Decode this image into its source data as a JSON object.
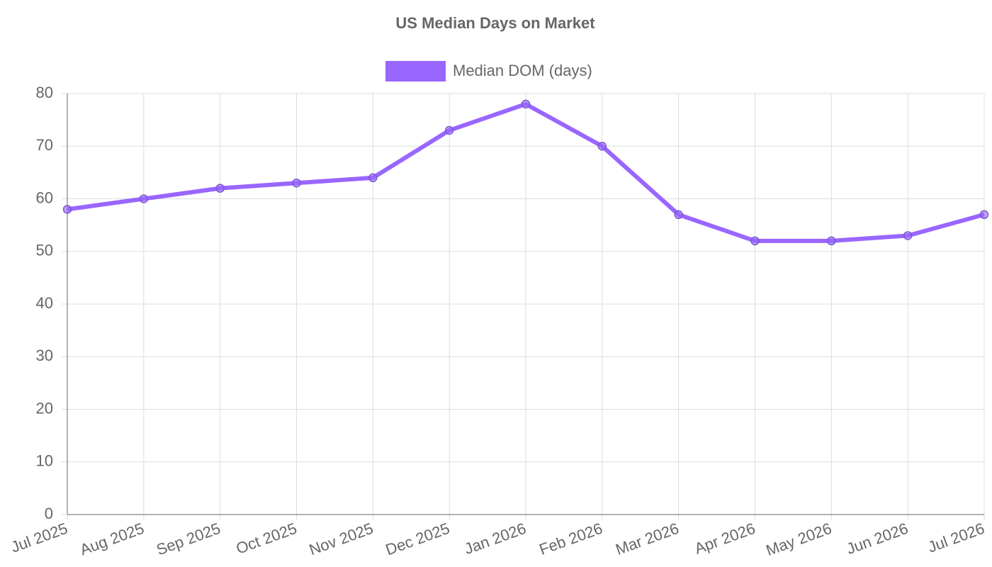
{
  "chart_data": {
    "type": "line",
    "title": "US Median Days on Market",
    "categories": [
      "Jul 2025",
      "Aug 2025",
      "Sep 2025",
      "Oct 2025",
      "Nov 2025",
      "Dec 2025",
      "Jan 2026",
      "Feb 2026",
      "Mar 2026",
      "Apr 2026",
      "May 2026",
      "Jun 2026",
      "Jul 2026"
    ],
    "series": [
      {
        "name": "Median DOM (days)",
        "color": "#9966ff",
        "values": [
          58,
          60,
          62,
          63,
          64,
          73,
          78,
          70,
          57,
          52,
          52,
          53,
          57
        ]
      }
    ],
    "ylim": [
      0,
      80
    ],
    "yticks": [
      0,
      10,
      20,
      30,
      40,
      50,
      60,
      70,
      80
    ],
    "grid": true,
    "legend": "top"
  }
}
